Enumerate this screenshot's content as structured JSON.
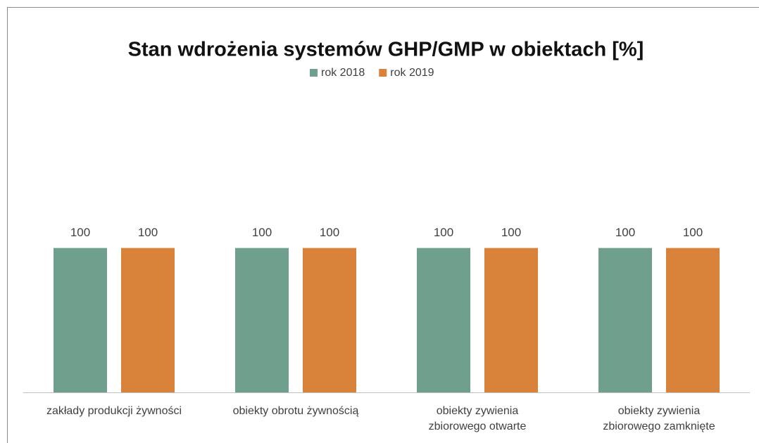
{
  "chart_data": {
    "type": "bar",
    "title": "Stan wdrożenia systemów GHP/GMP w obiektach [%]",
    "categories": [
      "zakłady produkcji żywności",
      "obiekty obrotu żywnością",
      "obiekty zywienia zbiorowego otwarte",
      "obiekty zywienia zbiorowego zamknięte"
    ],
    "series": [
      {
        "name": "rok 2018",
        "color": "#6f9f8d",
        "values": [
          100,
          100,
          100,
          100
        ]
      },
      {
        "name": "rok 2019",
        "color": "#d9823a",
        "values": [
          100,
          100,
          100,
          100
        ]
      }
    ],
    "ylim": [
      0,
      150
    ],
    "legend": "top"
  }
}
